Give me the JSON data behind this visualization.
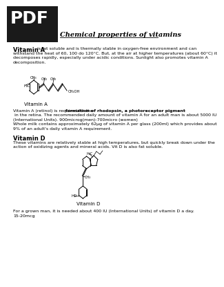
{
  "title": "Chemical properties of vitamins",
  "bg_color": "#ffffff",
  "header_bg": "#1a1a1a",
  "header_text": "PDF",
  "header_text_color": "#ffffff",
  "title_color": "#000000",
  "vitamin_a_intro1": "Vitamin A",
  "vitamin_a_intro2": " is fat soluble and is thermally stable in oxygen-free environment and can",
  "vitamin_a_intro_lines": [
    "withstand the heat of 60, 100 do 120°C. But, at the air at higher temperatures (about 60°C) it",
    "decomposes rapidly, especially under acidic conditions. Sunlight also promotes vitamin A",
    "decomposition."
  ],
  "vitamin_a_body1": "Vitamin A (retinol) is required for the ",
  "vitamin_a_body_bold": "formation of rhodopsin, a photoreceptor pigment",
  "vitamin_a_body_lines": [
    " in the retina. The recommended daily amount of vitamin A for an adult man is about 5000 IU",
    "(International Units). 900microg(men)-700micro (women)",
    "Whole milk contains approximately 62μg of vitamin A per glass (200ml) which provides about",
    "9% of an adult's daily vitamin A requirement."
  ],
  "vitamin_d_heading": "Vitamin D",
  "vitamin_d_intro_lines": [
    "These vitamins are relatively stable at high temperatures, but quickly break down under the",
    "action of oxidizing agents and mineral acids. Vit D is also fat soluble."
  ],
  "vitamin_d_body_lines": [
    "For a grown man, it is needed about 400 IU (International Units) of vitamin D a day.",
    "15-20mcg"
  ]
}
